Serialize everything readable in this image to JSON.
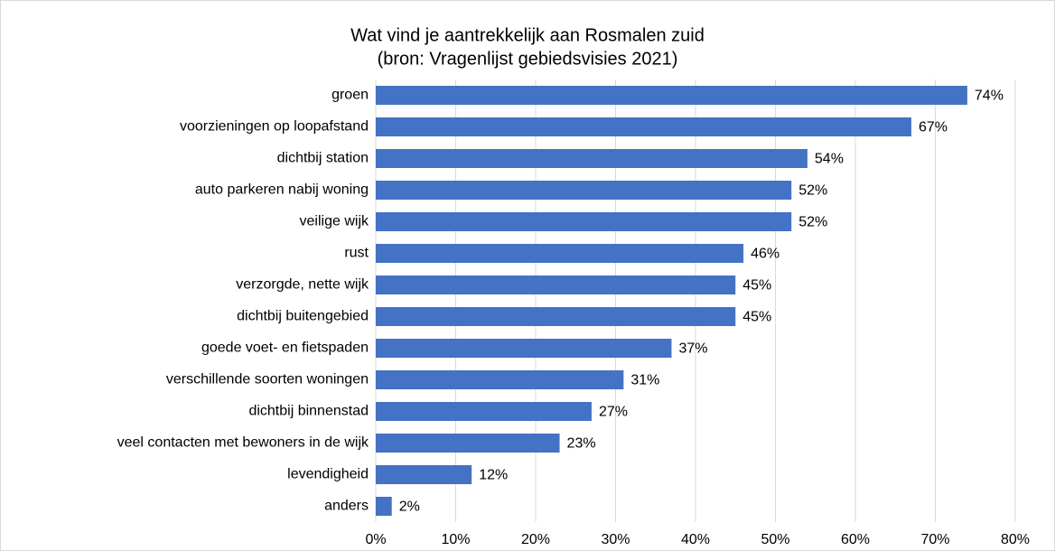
{
  "chart_data": {
    "type": "bar",
    "orientation": "horizontal",
    "title": "Wat vind je aantrekkelijk aan Rosmalen zuid",
    "subtitle": "(bron: Vragenlijst gebiedsvisies 2021)",
    "categories": [
      "groen",
      "voorzieningen op loopafstand",
      "dichtbij station",
      "auto parkeren nabij woning",
      "veilige wijk",
      "rust",
      "verzorgde, nette wijk",
      "dichtbij buitengebied",
      "goede voet- en fietspaden",
      "verschillende soorten woningen",
      "dichtbij binnenstad",
      "veel contacten met bewoners in de wijk",
      "levendigheid",
      "anders"
    ],
    "values": [
      74,
      67,
      54,
      52,
      52,
      46,
      45,
      45,
      37,
      31,
      27,
      23,
      12,
      2
    ],
    "value_labels": [
      "74%",
      "67%",
      "54%",
      "52%",
      "52%",
      "46%",
      "45%",
      "45%",
      "37%",
      "31%",
      "27%",
      "23%",
      "12%",
      "2%"
    ],
    "color": "#4472c4",
    "xlim": [
      0,
      80
    ],
    "xticks": [
      {
        "value": 0,
        "label": "0%"
      },
      {
        "value": 10,
        "label": "10%"
      },
      {
        "value": 20,
        "label": "20%"
      },
      {
        "value": 30,
        "label": "30%"
      },
      {
        "value": 40,
        "label": "40%"
      },
      {
        "value": 50,
        "label": "50%"
      },
      {
        "value": 60,
        "label": "60%"
      },
      {
        "value": 70,
        "label": "70%"
      },
      {
        "value": 80,
        "label": "80%"
      }
    ],
    "grid": true
  }
}
